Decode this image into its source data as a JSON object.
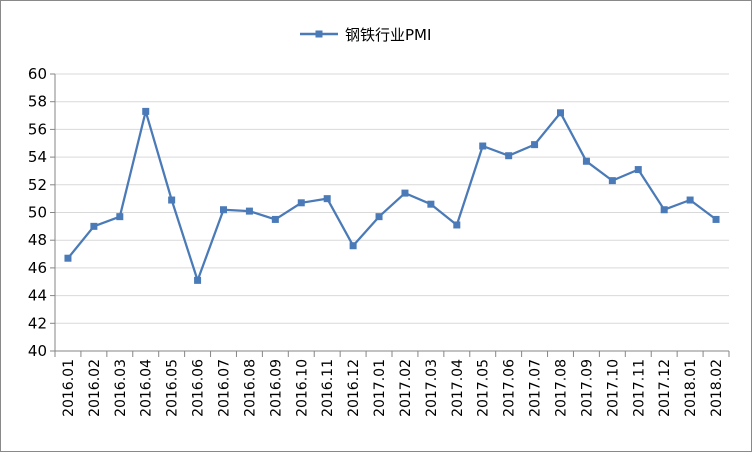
{
  "chart_data": {
    "type": "line",
    "title": "",
    "xlabel": "",
    "ylabel": "",
    "ylim": [
      40,
      60
    ],
    "yticks": [
      40,
      42,
      44,
      46,
      48,
      50,
      52,
      54,
      56,
      58,
      60
    ],
    "grid": true,
    "legend_position": "top-center",
    "series_color": "#4a7ab7",
    "categories": [
      "2016.01",
      "2016.02",
      "2016.03",
      "2016.04",
      "2016.05",
      "2016.06",
      "2016.07",
      "2016.08",
      "2016.09",
      "2016.10",
      "2016.11",
      "2016.12",
      "2017.01",
      "2017.02",
      "2017.03",
      "2017.04",
      "2017.05",
      "2017.06",
      "2017.07",
      "2017.08",
      "2017.09",
      "2017.10",
      "2017.11",
      "2017.12",
      "2018.01",
      "2018.02"
    ],
    "series": [
      {
        "name": "钢铁行业PMI",
        "marker": "square",
        "values": [
          46.7,
          49.0,
          49.7,
          57.3,
          50.9,
          45.1,
          50.2,
          50.1,
          49.5,
          50.7,
          51.0,
          47.6,
          49.7,
          51.4,
          50.6,
          49.1,
          54.8,
          54.1,
          54.9,
          57.2,
          53.7,
          52.3,
          53.1,
          50.2,
          50.9,
          49.5
        ]
      }
    ]
  }
}
